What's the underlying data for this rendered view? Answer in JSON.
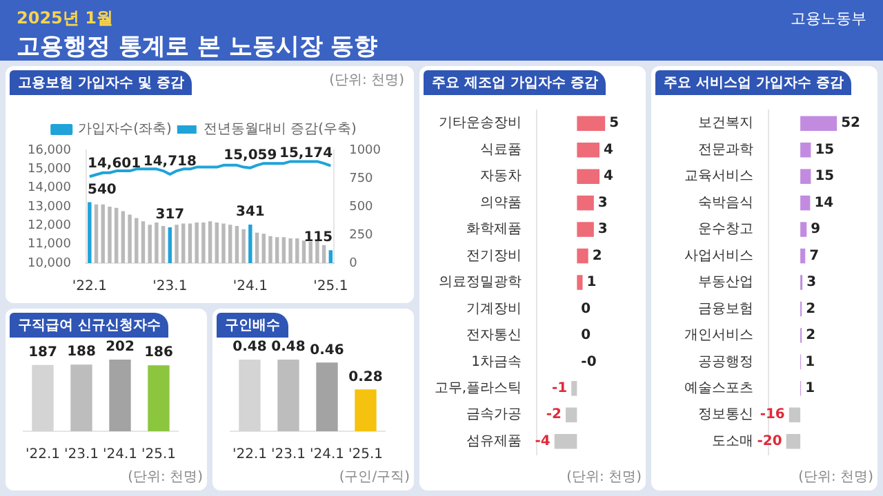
{
  "chart_data": [
    {
      "type": "other",
      "title": "고용행정 통계로 본 노동시장 동향",
      "subtitle": "2025년 1월",
      "annotations": [
        "고용노동부"
      ]
    },
    {
      "type": "bar",
      "title": "고용보험 가입자수 및 증감",
      "legend": "top",
      "annotations": [
        "(단위: 천명)"
      ],
      "ylim": [
        10000,
        16000
      ],
      "yticks": [
        {
          "value": 10000,
          "label": "10,000"
        },
        {
          "value": 11000,
          "label": "11,000"
        },
        {
          "value": 12000,
          "label": "12,000"
        },
        {
          "value": 13000,
          "label": "13,000"
        },
        {
          "value": 14000,
          "label": "14,000"
        },
        {
          "value": 15000,
          "label": "15,000"
        },
        {
          "value": 16000,
          "label": "16,000"
        }
      ],
      "y2lim": [
        0,
        1000
      ],
      "y2ticks": [
        0,
        250,
        500,
        750,
        1000
      ],
      "categories": [
        "'22.1",
        null,
        null,
        null,
        null,
        null,
        null,
        null,
        null,
        null,
        null,
        null,
        "'23.1",
        null,
        null,
        null,
        null,
        null,
        null,
        null,
        null,
        null,
        null,
        null,
        "'24.1",
        null,
        null,
        null,
        null,
        null,
        null,
        null,
        null,
        null,
        null,
        null,
        "'25.1"
      ],
      "series": [
        {
          "name": "전년동월대비 증감(우축)",
          "type": "bar",
          "axis": "y2",
          "colors": [
            "#1fa3d9",
            "#b9b9b9",
            "#b9b9b9",
            "#b9b9b9",
            "#b9b9b9",
            "#b9b9b9",
            "#b9b9b9",
            "#b9b9b9",
            "#b9b9b9",
            "#b9b9b9",
            "#b9b9b9",
            "#b9b9b9",
            "#1fa3d9",
            "#b9b9b9",
            "#b9b9b9",
            "#b9b9b9",
            "#b9b9b9",
            "#b9b9b9",
            "#b9b9b9",
            "#b9b9b9",
            "#b9b9b9",
            "#b9b9b9",
            "#b9b9b9",
            "#b9b9b9",
            "#1fa3d9",
            "#b9b9b9",
            "#b9b9b9",
            "#b9b9b9",
            "#b9b9b9",
            "#b9b9b9",
            "#b9b9b9",
            "#b9b9b9",
            "#b9b9b9",
            "#b9b9b9",
            "#b9b9b9",
            "#b9b9b9",
            "#1fa3d9"
          ],
          "values": [
            540,
            520,
            520,
            500,
            490,
            460,
            430,
            400,
            370,
            340,
            360,
            330,
            317,
            340,
            350,
            350,
            360,
            360,
            370,
            360,
            350,
            340,
            330,
            300,
            341,
            270,
            260,
            240,
            230,
            230,
            220,
            220,
            200,
            190,
            200,
            160,
            115
          ],
          "value_labels": [
            "540",
            null,
            null,
            null,
            null,
            null,
            null,
            null,
            null,
            null,
            null,
            null,
            "317",
            null,
            null,
            null,
            null,
            null,
            null,
            null,
            null,
            null,
            null,
            null,
            "341",
            null,
            null,
            null,
            null,
            null,
            null,
            null,
            null,
            null,
            null,
            null,
            "115"
          ]
        },
        {
          "name": "가입자수(좌축)",
          "type": "line",
          "color": "#1fa3d9",
          "values": [
            14601,
            14700,
            14800,
            14800,
            14900,
            14900,
            14900,
            15000,
            15000,
            15000,
            15000,
            14900,
            14718,
            14900,
            15000,
            15000,
            15100,
            15100,
            15100,
            15100,
            15200,
            15200,
            15200,
            15100,
            15059,
            15200,
            15300,
            15300,
            15300,
            15300,
            15400,
            15400,
            15400,
            15400,
            15400,
            15300,
            15174
          ],
          "value_labels": [
            "14,601",
            null,
            null,
            null,
            null,
            null,
            null,
            null,
            null,
            null,
            null,
            null,
            "14,718",
            null,
            null,
            null,
            null,
            null,
            null,
            null,
            null,
            null,
            null,
            null,
            "15,059",
            null,
            null,
            null,
            null,
            null,
            null,
            null,
            null,
            null,
            null,
            null,
            "15,174"
          ]
        }
      ]
    },
    {
      "type": "bar",
      "orientation": "horizontal",
      "title": "주요 제조업 가입자수 증감",
      "tick_labels": "y",
      "annotations": [
        "(단위: 천명)"
      ],
      "categories": [
        "기타운송장비",
        "식료품",
        "자동차",
        "의약품",
        "화학제품",
        "전기장비",
        "의료정밀광학",
        "기계장비",
        "전자통신",
        "1차금속",
        "고무,플라스틱",
        "금속가공",
        "섬유제품"
      ],
      "values": [
        5,
        4,
        4,
        3,
        3,
        2,
        1,
        0,
        0,
        0,
        -1,
        -2,
        -4
      ],
      "value_labels": [
        "5",
        "4",
        "4",
        "3",
        "3",
        "2",
        "1",
        "0",
        "0",
        "-0",
        "-1",
        "-2",
        "-4"
      ],
      "colors": [
        "#ee6b78",
        "#ee6b78",
        "#ee6b78",
        "#ee6b78",
        "#ee6b78",
        "#ee6b78",
        "#ee6b78",
        "#ee6b78",
        "#ee6b78",
        "#c8c8c8",
        "#c8c8c8",
        "#c8c8c8",
        "#c8c8c8"
      ]
    },
    {
      "type": "bar",
      "orientation": "horizontal",
      "title": "주요 서비스업 가입자수 증감",
      "tick_labels": "y",
      "data_labels": true,
      "annotations": [
        "(단위: 천명)"
      ],
      "categories": [
        "보건복지",
        "전문과학",
        "교육서비스",
        "숙박음식",
        "운수창고",
        "사업서비스",
        "부동산업",
        "금융보험",
        "개인서비스",
        "공공행정",
        "예술스포츠",
        "정보통신",
        "도소매"
      ],
      "values": [
        52,
        15,
        15,
        14,
        9,
        7,
        3,
        2,
        2,
        1,
        1,
        -16,
        -20
      ],
      "colors": [
        "#c28be0",
        "#c28be0",
        "#c28be0",
        "#c28be0",
        "#c28be0",
        "#c28be0",
        "#c28be0",
        "#c28be0",
        "#c28be0",
        "#c28be0",
        "#c28be0",
        "#c8c8c8",
        "#c8c8c8"
      ]
    },
    {
      "type": "bar",
      "title": "구직급여 신규신청자수",
      "tick_labels": "x",
      "data_labels": true,
      "annotations": [
        "(단위: 천명)"
      ],
      "categories": [
        "'22.1",
        "'23.1",
        "'24.1",
        "'25.1"
      ],
      "values": [
        187,
        188,
        202,
        186
      ],
      "colors": [
        "#d4d4d4",
        "#bdbdbd",
        "#a3a3a3",
        "#8cc63f"
      ]
    },
    {
      "type": "bar",
      "title": "구인배수",
      "tick_labels": "x",
      "data_labels": true,
      "annotations": [
        "(구인/구직)"
      ],
      "categories": [
        "'22.1",
        "'23.1",
        "'24.1",
        "'25.1"
      ],
      "values": [
        0.48,
        0.48,
        0.46,
        0.28
      ],
      "colors": [
        "#d4d4d4",
        "#bdbdbd",
        "#a3a3a3",
        "#f5c20f"
      ]
    }
  ]
}
